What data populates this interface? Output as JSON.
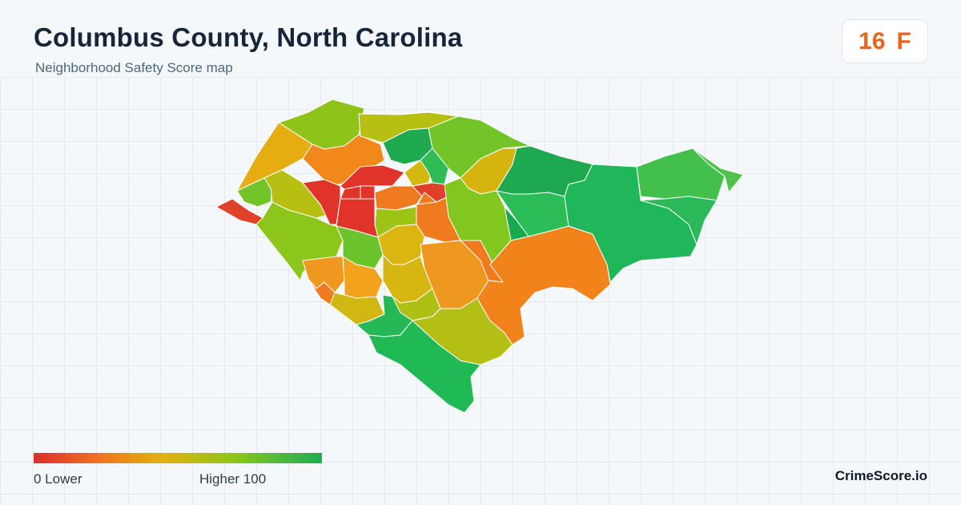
{
  "header": {
    "title": "Columbus County, North Carolina",
    "subtitle": "Neighborhood Safety Score map"
  },
  "score": {
    "value": "16",
    "grade": "F",
    "color": "#e8651c"
  },
  "legend": {
    "low_label": "0  Lower",
    "high_label": "Higher  100",
    "colors": [
      "#dc2f2a",
      "#f07b1e",
      "#e1b10f",
      "#8cc61a",
      "#1aad55"
    ]
  },
  "brand": "CrimeScore.io",
  "map": {
    "region_count": 44
  }
}
